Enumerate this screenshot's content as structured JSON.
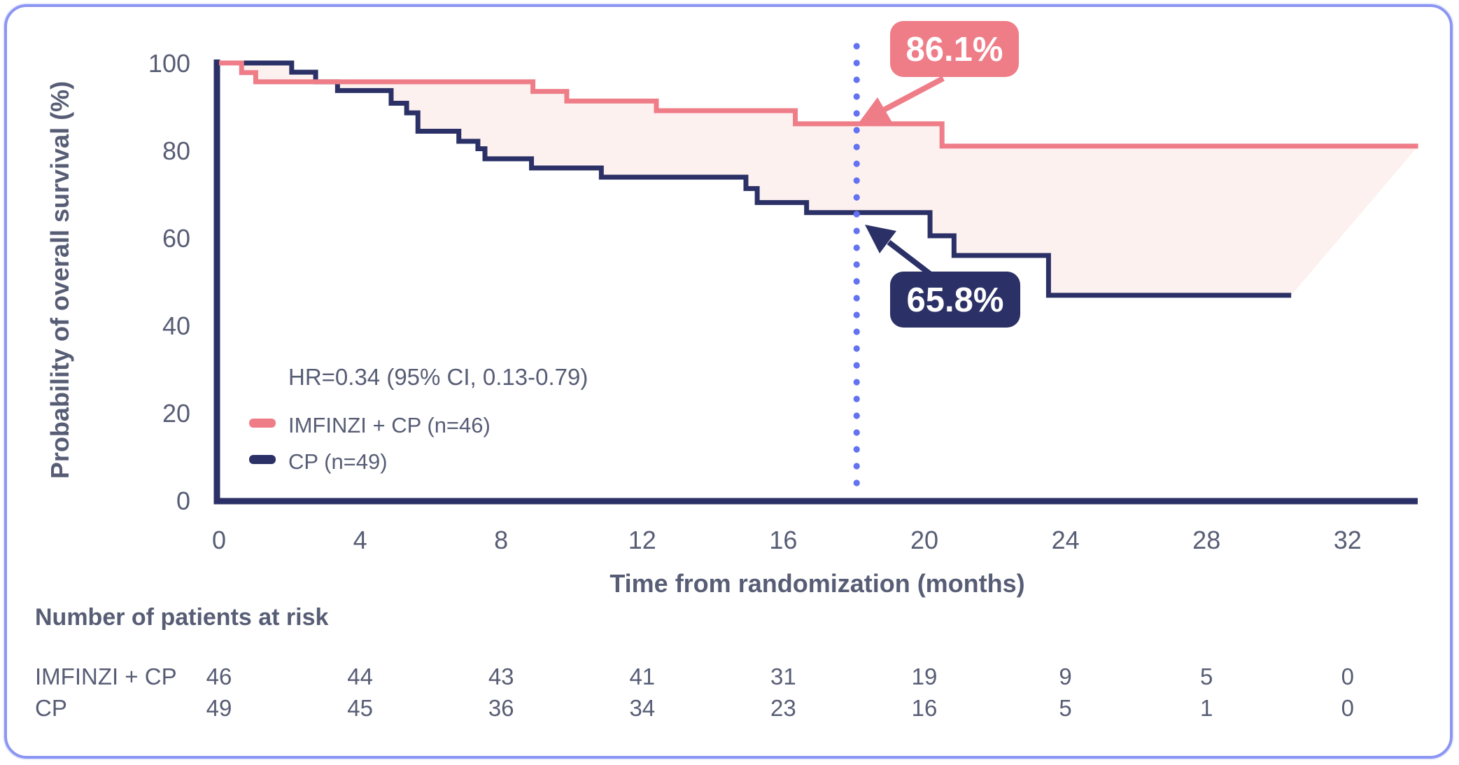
{
  "colors": {
    "pink": "#ee7d88",
    "navy": "#2b3166",
    "fill_between": "#fdf1f0",
    "dotted_line": "#6372f0",
    "text": "#575d75",
    "card_border": "#8b95f3",
    "background": "#ffffff",
    "badge_text": "#ffffff"
  },
  "chart_data": {
    "type": "line",
    "subtype": "kaplan-meier-step",
    "title": "",
    "xlabel": "Time from randomization (months)",
    "ylabel": "Probability of overall survival (%)",
    "hr_text": "HR=0.34 (95% CI, 0.13-0.79)",
    "x_ticks": [
      0,
      4,
      8,
      12,
      16,
      20,
      24,
      28,
      32
    ],
    "y_ticks": [
      100,
      80,
      60,
      40,
      20,
      0
    ],
    "xlim": [
      0,
      34
    ],
    "ylim": [
      0,
      100
    ],
    "grid": false,
    "legend_position": "lower-left-inside",
    "landmark_month": 18,
    "series": [
      {
        "name": "IMFINZI + CP (n=46)",
        "color": "#ee7d88",
        "start_value": 100,
        "steps": [
          [
            0.64,
            97.8
          ],
          [
            1.04,
            95.7
          ],
          [
            8.9,
            93.5
          ],
          [
            9.86,
            91.3
          ],
          [
            12.4,
            89.1
          ],
          [
            16.34,
            86.1
          ],
          [
            20.5,
            81.0
          ]
        ],
        "end_month": 34.0,
        "landmark_label": "86.1%"
      },
      {
        "name": "CP (n=49)",
        "color": "#2b3166",
        "start_value": 100,
        "steps": [
          [
            2.06,
            97.9
          ],
          [
            2.74,
            95.7
          ],
          [
            3.36,
            93.7
          ],
          [
            4.88,
            90.8
          ],
          [
            5.32,
            88.6
          ],
          [
            5.64,
            84.4
          ],
          [
            6.8,
            82.1
          ],
          [
            7.34,
            80.4
          ],
          [
            7.54,
            78.1
          ],
          [
            8.86,
            76.0
          ],
          [
            10.84,
            73.9
          ],
          [
            14.94,
            71.3
          ],
          [
            15.26,
            68.1
          ],
          [
            16.66,
            65.8
          ],
          [
            20.16,
            60.5
          ],
          [
            20.84,
            56.0
          ],
          [
            23.52,
            46.9
          ]
        ],
        "end_month": 30.4,
        "landmark_label": "65.8%"
      }
    ],
    "risk_table": {
      "heading": "Number of patients at risk",
      "columns_months": [
        0,
        4,
        8,
        12,
        16,
        20,
        24,
        28,
        32
      ],
      "rows": [
        {
          "label": "IMFINZI + CP",
          "values": [
            46,
            44,
            43,
            41,
            31,
            19,
            9,
            5,
            0
          ]
        },
        {
          "label": "CP",
          "values": [
            49,
            45,
            36,
            34,
            23,
            16,
            5,
            1,
            0
          ]
        }
      ]
    }
  }
}
